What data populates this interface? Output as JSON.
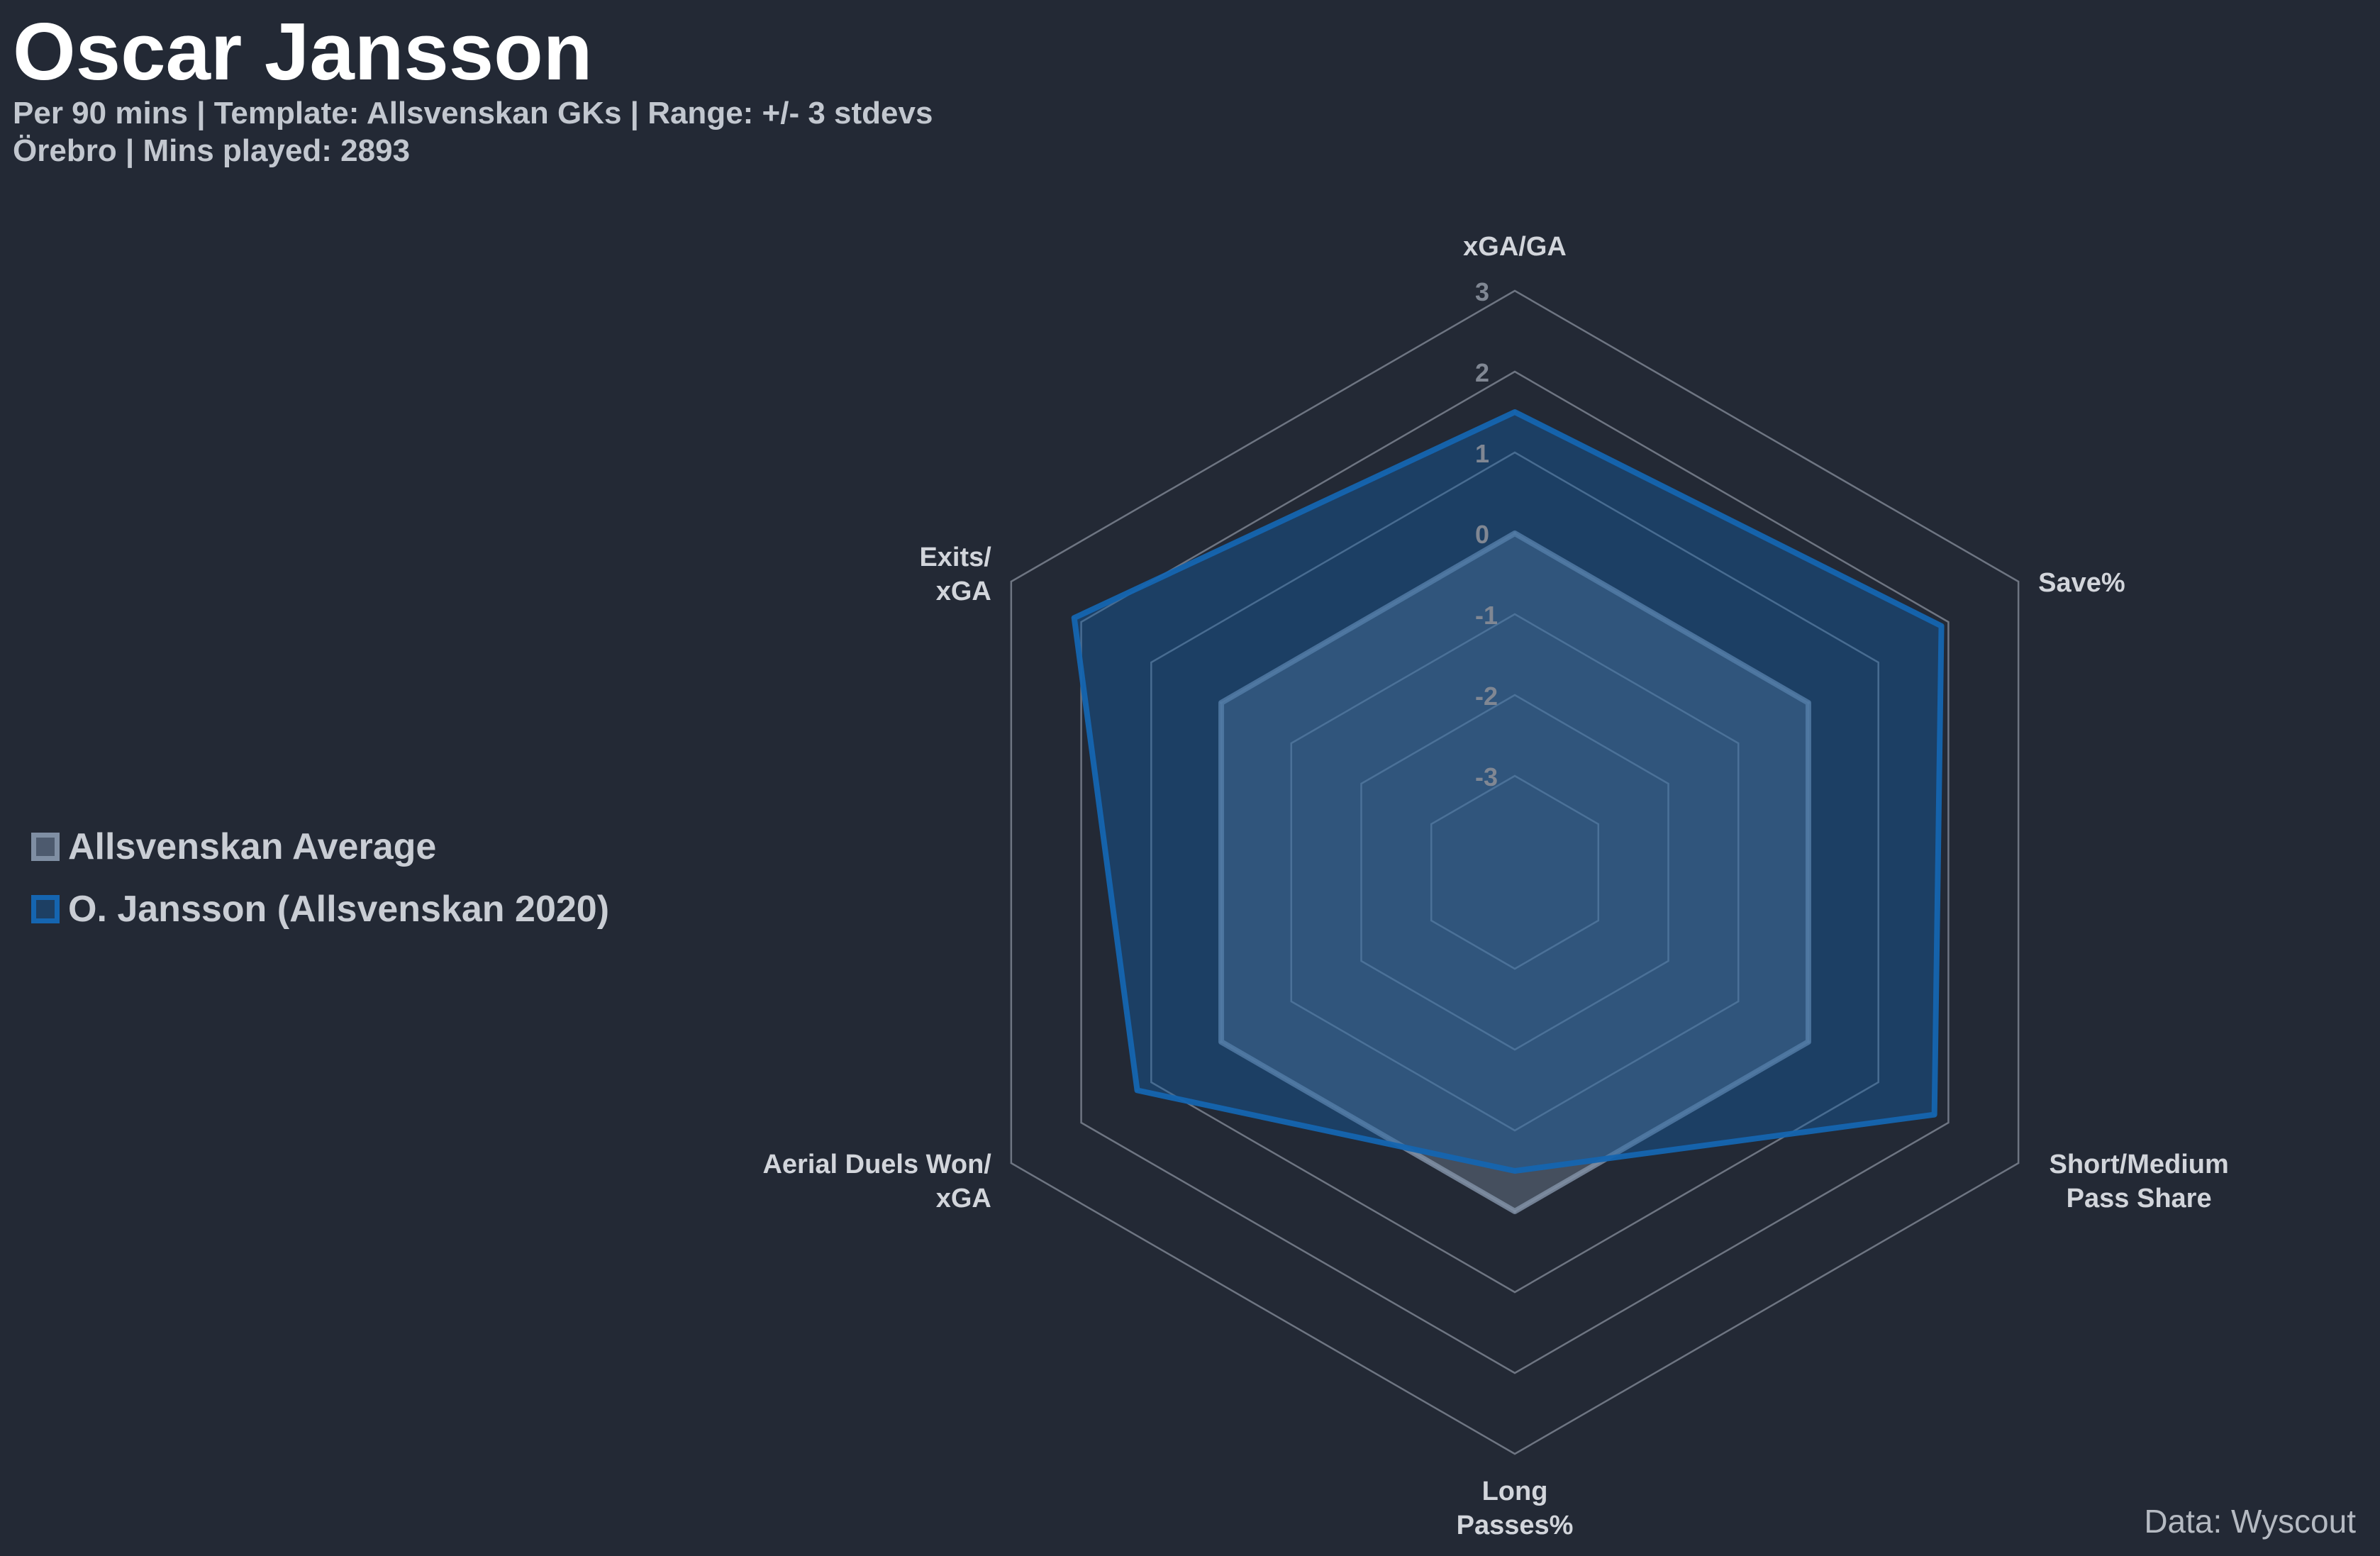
{
  "header": {
    "title": "Oscar Jansson",
    "subtitle_line1": "Per 90 mins | Template: Allsvenskan GKs | Range: +/- 3 stdevs",
    "subtitle_line2": "Örebro | Mins played: 2893"
  },
  "legend": {
    "items": [
      {
        "label": "Allsvenskan Average",
        "color": "#7f8ea3"
      },
      {
        "label": "O. Jansson (Allsvenskan 2020)",
        "color": "#1565b0"
      }
    ]
  },
  "credit": "Data: Wyscout",
  "chart_data": {
    "type": "radar",
    "range": [
      -3,
      3
    ],
    "ring_ticks": [
      "3",
      "2",
      "1",
      "0",
      "-1",
      "-2",
      "-3"
    ],
    "axes": [
      {
        "lines": [
          "xGA/GA"
        ]
      },
      {
        "lines": [
          "Save%"
        ]
      },
      {
        "lines": [
          "Short/Medium",
          "Pass Share"
        ]
      },
      {
        "lines": [
          "Long",
          "Passes%"
        ]
      },
      {
        "lines": [
          "Aerial Duels Won/",
          "xGA"
        ]
      },
      {
        "lines": [
          "Exits/",
          "xGA"
        ]
      }
    ],
    "series": [
      {
        "name": "Allsvenskan Average",
        "values": [
          0,
          0,
          0,
          0,
          0,
          0
        ],
        "color": "#7f8ea3"
      },
      {
        "name": "O. Jansson (Allsvenskan 2020)",
        "values": [
          1.5,
          1.9,
          1.8,
          -0.5,
          1.2,
          2.1
        ],
        "color": "#1565b0"
      }
    ],
    "grid": true,
    "legend_position": "left"
  }
}
